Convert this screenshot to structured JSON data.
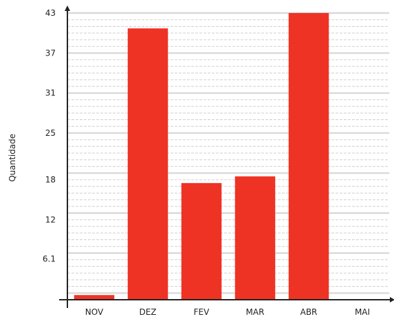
{
  "chart_data": {
    "type": "bar",
    "categories": [
      "NOV",
      "DEZ",
      "FEV",
      "MAR",
      "ABR",
      "MAI"
    ],
    "values": [
      0.7,
      40.7,
      17.5,
      18.5,
      43,
      0
    ],
    "ylabel": "Quantidade",
    "ylim": [
      0,
      43
    ],
    "yticks": [
      6.1,
      12,
      18,
      25,
      31,
      37,
      43
    ],
    "grid": true,
    "legend": "none"
  },
  "colors": {
    "bar": "#ee3324",
    "grid_major": "#d9d9d9",
    "grid_minor": "#d0d0d0",
    "axis": "#222222",
    "text": "#222222"
  }
}
